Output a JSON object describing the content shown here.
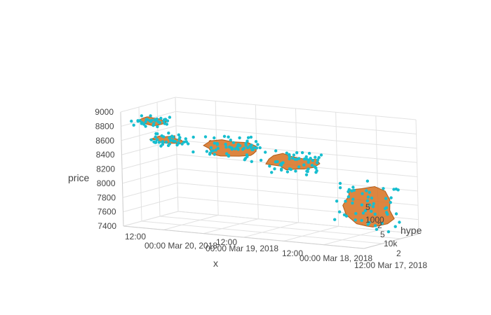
{
  "chart_data": {
    "type": "scatter3d",
    "title": "",
    "colors": {
      "marker": "#17becf",
      "surface": "#d9782b",
      "surface_edge": "#b25c18",
      "grid": "#e2e2e2",
      "text": "#444444"
    },
    "axes": {
      "x": {
        "label": "x",
        "ticks": [
          "12:00",
          "00:00 Mar 20, 2018",
          "12:00",
          "00:00 Mar 19, 2018",
          "12:00",
          "00:00 Mar 18, 2018",
          "12:00 Mar 17, 2018"
        ],
        "range": [
          "2018-03-17 12:00",
          "2018-03-20 12:00"
        ]
      },
      "y": {
        "label": "hype",
        "scale": "log",
        "ticks": [
          "5",
          "1000",
          "2",
          "5",
          "10k",
          "2"
        ],
        "range": [
          300,
          30000
        ]
      },
      "z": {
        "label": "price",
        "ticks": [
          "9000",
          "8800",
          "8600",
          "8400",
          "8200",
          "8000",
          "7800",
          "7600",
          "7400"
        ],
        "range": [
          7400,
          9000
        ]
      }
    },
    "clusters": [
      {
        "time_start": "2018-03-17 12:00",
        "time_end": "2018-03-18 04:00",
        "price_min": 7480,
        "price_max": 8150,
        "hype_min": 2000,
        "hype_max": 10000
      },
      {
        "time_start": "2018-03-18 10:00",
        "time_end": "2018-03-19 02:00",
        "price_min": 8250,
        "price_max": 8500,
        "hype_min": 1500,
        "hype_max": 8000
      },
      {
        "time_start": "2018-03-19 02:00",
        "time_end": "2018-03-19 20:00",
        "price_min": 8380,
        "price_max": 8650,
        "hype_min": 1000,
        "hype_max": 7000
      },
      {
        "time_start": "2018-03-19 22:00",
        "time_end": "2018-03-20 08:00",
        "price_min": 8520,
        "price_max": 8640,
        "hype_min": 600,
        "hype_max": 3000
      },
      {
        "time_start": "2018-03-20 02:00",
        "time_end": "2018-03-20 10:00",
        "price_min": 8800,
        "price_max": 8920,
        "hype_min": 400,
        "hype_max": 1500
      }
    ]
  }
}
